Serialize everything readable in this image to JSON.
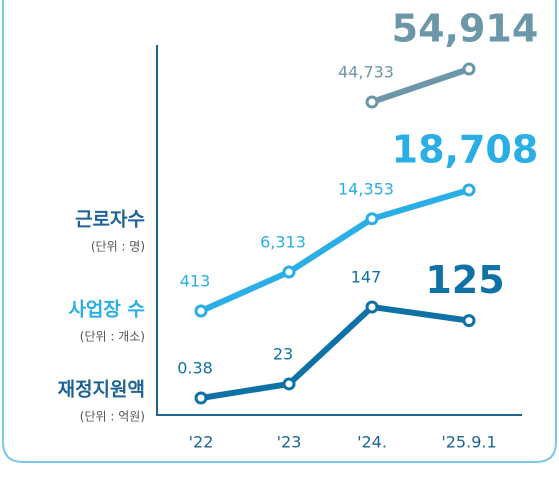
{
  "chart_data": {
    "type": "line",
    "categories": [
      "'22",
      "'23",
      "'24.",
      "'25.9.1"
    ],
    "series": [
      {
        "name": "근로자수",
        "unit": "(단위 : 명)",
        "color": "#6b97a8",
        "legend_color": "#1d6493",
        "values": [
          null,
          null,
          44733,
          54914
        ],
        "value_labels": [
          null,
          null,
          "44,733",
          "54,914"
        ]
      },
      {
        "name": "사업장 수",
        "unit": "(단위 : 개소)",
        "color": "#2aaee6",
        "legend_color": "#2aaee6",
        "values": [
          413,
          6313,
          14353,
          18708
        ],
        "value_labels": [
          "413",
          "6,313",
          "14,353",
          "18,708"
        ]
      },
      {
        "name": "재정지원액",
        "unit": "(단위 : 억원)",
        "color": "#0f72a6",
        "legend_color": "#1d6493",
        "values": [
          0.38,
          23,
          147,
          125
        ],
        "value_labels": [
          "0.38",
          "23",
          "147",
          "125"
        ]
      }
    ]
  }
}
